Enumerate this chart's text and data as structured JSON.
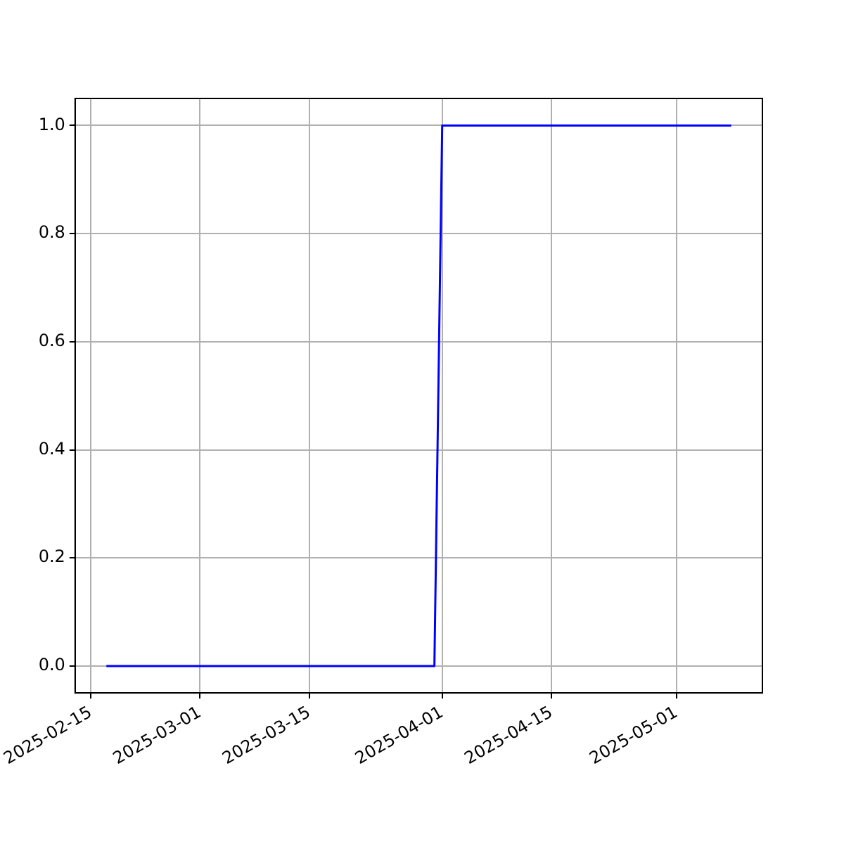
{
  "chart_data": {
    "type": "line",
    "x": [
      "2025-02-17",
      "2025-03-31",
      "2025-04-01",
      "2025-05-08"
    ],
    "series": [
      {
        "color": "#0000ff",
        "values": [
          0,
          0,
          1,
          1
        ]
      }
    ],
    "xlim": [
      "2025-02-13",
      "2025-05-12"
    ],
    "xticks": [
      "2025-02-15",
      "2025-03-01",
      "2025-03-15",
      "2025-04-01",
      "2025-04-15",
      "2025-05-01"
    ],
    "ylim": [
      -0.05,
      1.05
    ],
    "yticks": [
      {
        "value": 0,
        "label": "0.0"
      },
      {
        "value": 0.2,
        "label": "0.2"
      },
      {
        "value": 0.4,
        "label": "0.4"
      },
      {
        "value": 0.6,
        "label": "0.6"
      },
      {
        "value": 0.8,
        "label": "0.8"
      },
      {
        "value": 1,
        "label": "1.0"
      }
    ],
    "grid": true,
    "legend": false,
    "marker": "none",
    "line_style": "solid"
  }
}
